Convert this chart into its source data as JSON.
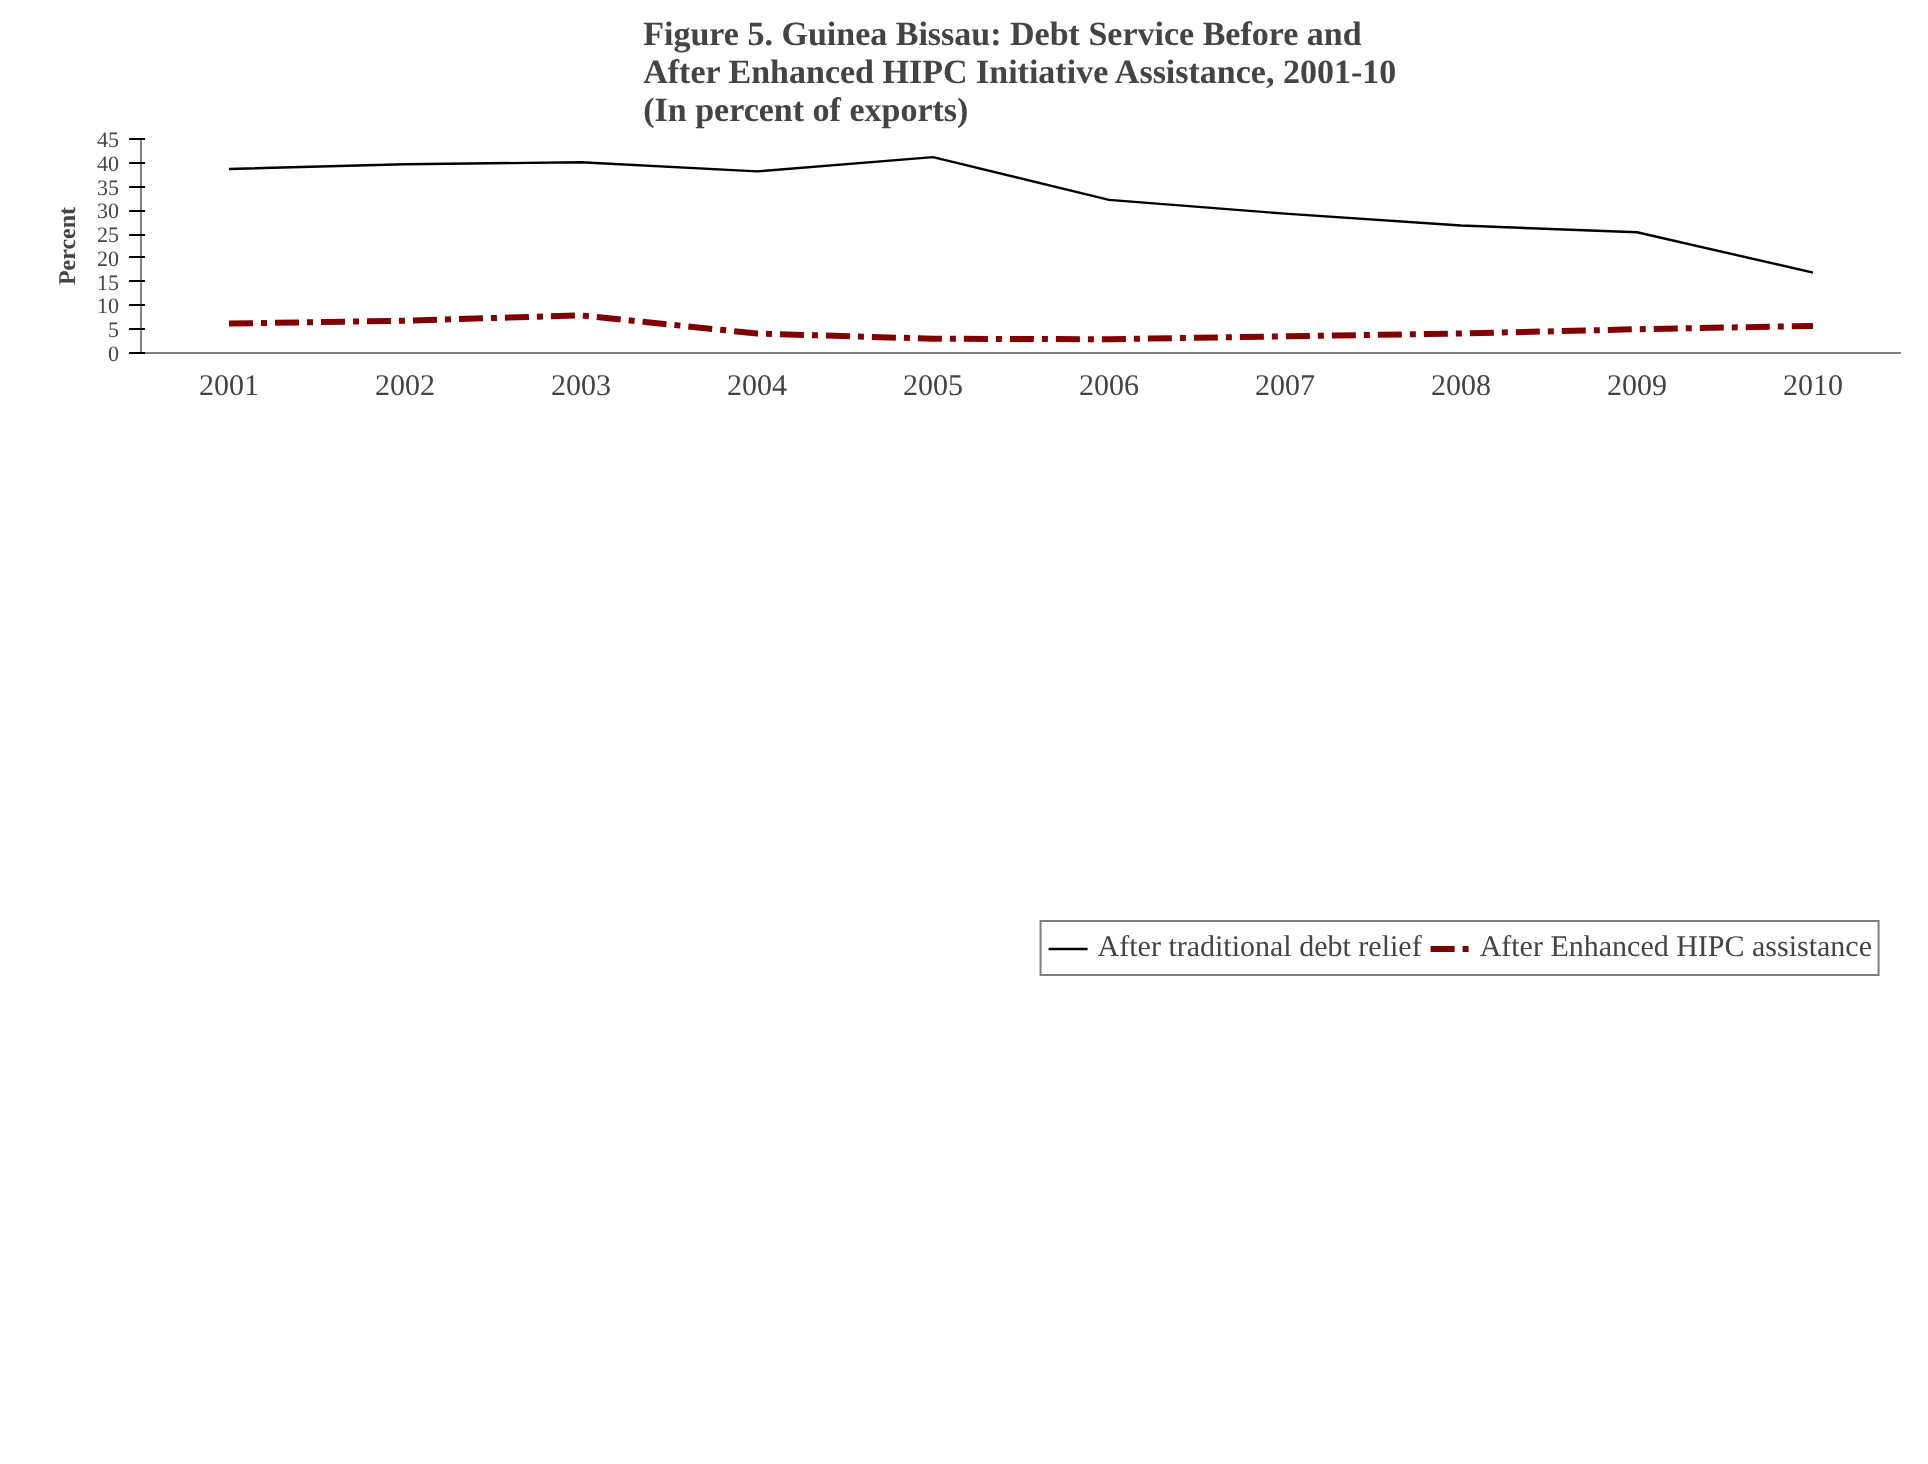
{
  "chart_data": {
    "type": "line",
    "title": "Figure 5. Guinea Bissau: Debt Service Before and\nAfter Enhanced HIPC Initiative Assistance, 2001-10\n(In percent of exports)",
    "ylabel": "Percent",
    "categories": [
      "2001",
      "2002",
      "2003",
      "2004",
      "2005",
      "2006",
      "2007",
      "2008",
      "2009",
      "2010"
    ],
    "series": [
      {
        "name": "After traditional debt relief",
        "color": "#000000",
        "line_style": "solid",
        "values": [
          38.7,
          39.7,
          40.1,
          38.2,
          41.2,
          32.2,
          29.3,
          26.8,
          25.4,
          16.9
        ]
      },
      {
        "name": "After Enhanced HIPC assistance",
        "color": "#800000",
        "line_style": "dashed",
        "values": [
          6.2,
          6.8,
          7.9,
          4.1,
          3.0,
          2.9,
          3.5,
          4.1,
          5.0,
          5.7
        ]
      }
    ],
    "ylim": [
      0,
      45
    ],
    "yticks": [
      0,
      5,
      10,
      15,
      20,
      25,
      30,
      35,
      40,
      45
    ],
    "grid": false,
    "legend": "bottom"
  }
}
